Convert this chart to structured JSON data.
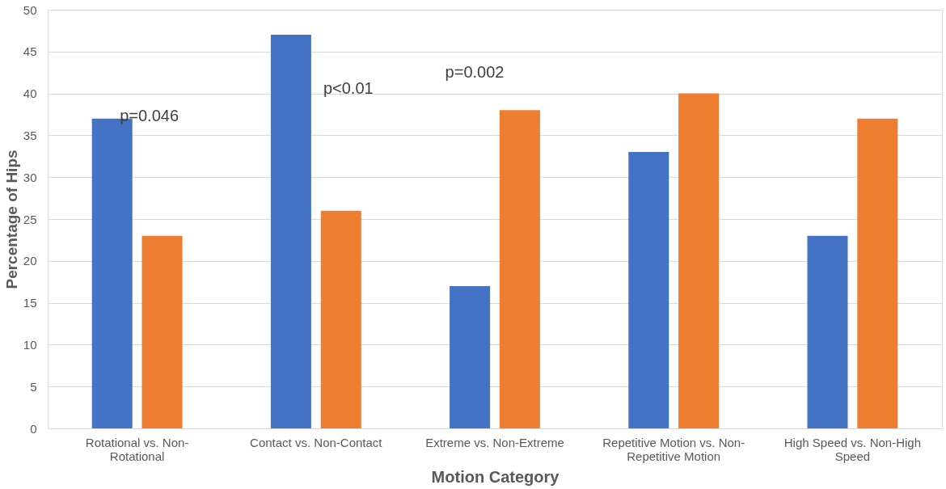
{
  "chart_data": {
    "type": "bar",
    "xlabel": "Motion Category",
    "ylabel": "Percentage of Hips",
    "categories": [
      "Rotational vs. Non-Rotational",
      "Contact vs. Non-Contact",
      "Extreme vs. Non-Extreme",
      "Repetitive Motion vs. Non-Repetitive Motion",
      "High Speed vs. Non-High Speed"
    ],
    "series": [
      {
        "color": "#4472c4",
        "values": [
          37,
          47,
          17,
          33,
          23
        ]
      },
      {
        "color": "#ed7d31",
        "values": [
          23,
          26,
          38,
          40,
          37
        ]
      }
    ],
    "ylim": [
      0,
      50
    ],
    "yticks": [
      0,
      5,
      10,
      15,
      20,
      25,
      30,
      35,
      40,
      45,
      50
    ],
    "grid": "y",
    "legend": false,
    "annotations": [
      "p=0.046",
      "p<0.01",
      "p=0.002"
    ]
  }
}
